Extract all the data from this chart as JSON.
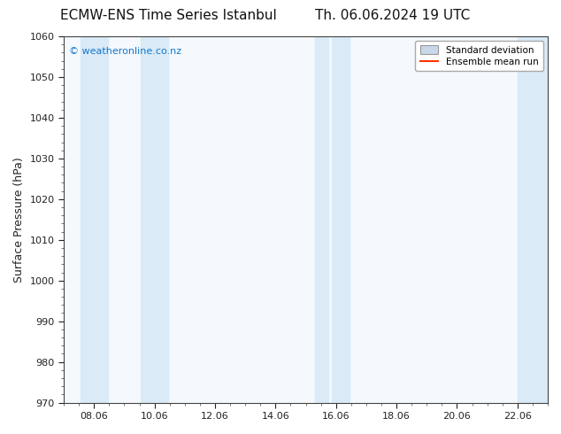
{
  "title_left": "ECMW-ENS Time Series Istanbul",
  "title_right": "Th. 06.06.2024 19 UTC",
  "ylabel": "Surface Pressure (hPa)",
  "ylim": [
    970,
    1060
  ],
  "yticks": [
    970,
    980,
    990,
    1000,
    1010,
    1020,
    1030,
    1040,
    1050,
    1060
  ],
  "xlim_start": 7.0,
  "xlim_end": 23.0,
  "xtick_labels": [
    "08.06",
    "10.06",
    "12.06",
    "14.06",
    "16.06",
    "18.06",
    "20.06",
    "22.06"
  ],
  "xtick_positions": [
    8.0,
    10.0,
    12.0,
    14.0,
    16.0,
    18.0,
    20.0,
    22.0
  ],
  "shaded_bands": [
    {
      "x_start": 7.55,
      "x_end": 8.45
    },
    {
      "x_start": 9.55,
      "x_end": 10.45
    },
    {
      "x_start": 15.3,
      "x_end": 15.75
    },
    {
      "x_start": 15.85,
      "x_end": 16.45
    },
    {
      "x_start": 22.0,
      "x_end": 23.0
    }
  ],
  "band_color": "#daeaf7",
  "watermark_text": "© weatheronline.co.nz",
  "watermark_color": "#1177cc",
  "watermark_fontsize": 8,
  "legend_std_dev_color": "#c8d8e8",
  "legend_std_dev_edge": "#999999",
  "legend_mean_color": "#ff3300",
  "bg_color": "#ffffff",
  "plot_bg_color": "#f5f9fd",
  "title_fontsize": 11,
  "ylabel_fontsize": 9,
  "tick_fontsize": 8,
  "minor_tick_interval": 0.5,
  "spine_color": "#444444"
}
